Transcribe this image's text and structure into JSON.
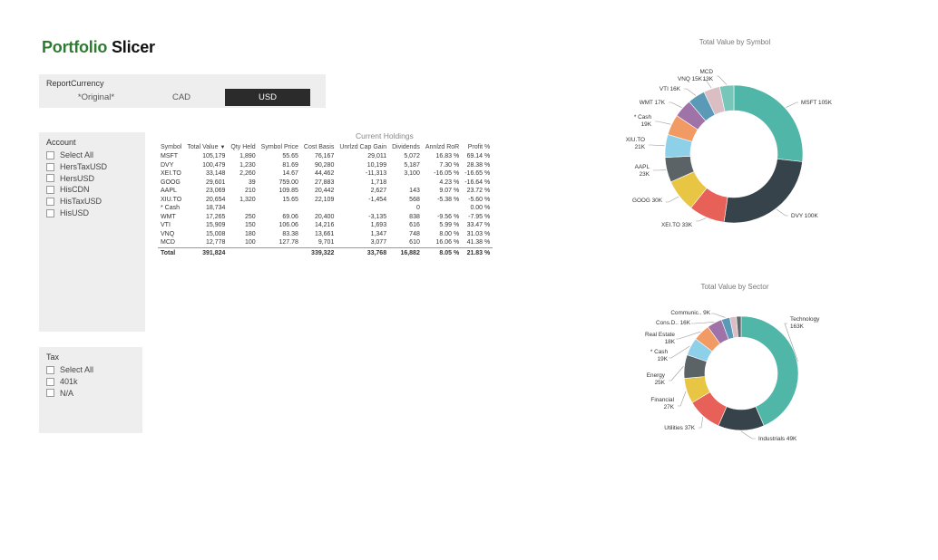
{
  "header": {
    "title_part1": "Portfolio",
    "title_part2": "Slicer"
  },
  "report_currency": {
    "label": "ReportCurrency",
    "options": [
      "*Original*",
      "CAD",
      "USD"
    ],
    "selected": "USD"
  },
  "account_slicer": {
    "title": "Account",
    "items": [
      "Select All",
      "HersTaxUSD",
      "HersUSD",
      "HisCDN",
      "HisTaxUSD",
      "HisUSD"
    ]
  },
  "tax_slicer": {
    "title": "Tax",
    "items": [
      "Select All",
      "401k",
      "N/A"
    ]
  },
  "holdings": {
    "title": "Current Holdings",
    "columns": [
      "Symbol",
      "Total Value",
      "Qty Held",
      "Symbol Price",
      "Cost Basis",
      "Unrlzd Cap Gain",
      "Dividends",
      "Annlzd RoR",
      "Profit %"
    ],
    "sort_icon": "sort-desc-icon",
    "rows": [
      [
        "MSFT",
        "105,179",
        "1,890",
        "55.65",
        "76,167",
        "29,011",
        "5,072",
        "16.83 %",
        "69.14 %"
      ],
      [
        "DVY",
        "100,479",
        "1,230",
        "81.69",
        "90,280",
        "10,199",
        "5,187",
        "7.30 %",
        "28.38 %"
      ],
      [
        "XEI.TO",
        "33,148",
        "2,260",
        "14.67",
        "44,462",
        "-11,313",
        "3,100",
        "-16.05 %",
        "-16.65 %"
      ],
      [
        "GOOG",
        "29,601",
        "39",
        "759.00",
        "27,883",
        "1,718",
        "",
        "4.23 %",
        "-16.64 %"
      ],
      [
        "AAPL",
        "23,069",
        "210",
        "109.85",
        "20,442",
        "2,627",
        "143",
        "9.07 %",
        "23.72 %"
      ],
      [
        "XIU.TO",
        "20,654",
        "1,320",
        "15.65",
        "22,109",
        "-1,454",
        "568",
        "-5.38 %",
        "-5.60 %"
      ],
      [
        "* Cash",
        "18,734",
        "",
        "",
        "",
        "",
        "0",
        "",
        "0.00 %"
      ],
      [
        "WMT",
        "17,265",
        "250",
        "69.06",
        "20,400",
        "-3,135",
        "838",
        "-9.56 %",
        "-7.95 %"
      ],
      [
        "VTI",
        "15,909",
        "150",
        "106.06",
        "14,216",
        "1,693",
        "616",
        "5.99 %",
        "33.47 %"
      ],
      [
        "VNQ",
        "15,008",
        "180",
        "83.38",
        "13,661",
        "1,347",
        "748",
        "8.00 %",
        "31.03 %"
      ],
      [
        "MCD",
        "12,778",
        "100",
        "127.78",
        "9,701",
        "3,077",
        "610",
        "16.06 %",
        "41.38 %"
      ]
    ],
    "total": [
      "Total",
      "391,824",
      "",
      "",
      "339,322",
      "33,768",
      "16,882",
      "8.05 %",
      "21.83 %"
    ]
  },
  "chart_data": [
    {
      "type": "pie",
      "title": "Total Value by Symbol",
      "categories": [
        "MSFT",
        "DVY",
        "XEI.TO",
        "GOOG",
        "AAPL",
        "XIU.TO",
        "* Cash",
        "WMT",
        "VTI",
        "VNQ",
        "MCD"
      ],
      "values": [
        105,
        100,
        33,
        30,
        23,
        21,
        19,
        17,
        16,
        15,
        13
      ],
      "labels": [
        "MSFT 105K",
        "DVY 100K",
        "XEI.TO 33K",
        "GOOG 30K",
        "AAPL\n23K",
        "XIU.TO\n21K",
        "* Cash\n19K",
        "WMT 17K",
        "VTI 16K",
        "VNQ 15K",
        "MCD\n13K"
      ],
      "colors": [
        "#4fb6a8",
        "#37434a",
        "#e86158",
        "#e8c542",
        "#5b6367",
        "#8ed0e8",
        "#f29a63",
        "#a073a8",
        "#5b9ab7",
        "#dbbec4",
        "#76c7ba"
      ]
    },
    {
      "type": "pie",
      "title": "Total Value by Sector",
      "categories": [
        "Technology",
        "Industrials",
        "Utilities",
        "Financial",
        "Energy",
        "* Cash",
        "Real Estate",
        "Cons.D..",
        "Communic.",
        "",
        ""
      ],
      "values": [
        163,
        49,
        37,
        27,
        25,
        19,
        18,
        16,
        9,
        7,
        5
      ],
      "labels": [
        "Technology\n163K",
        "Industrials 49K",
        "Utilities 37K",
        "Financial\n27K",
        "Energy\n25K",
        "* Cash\n19K",
        "Real Estate\n18K",
        "Cons.D.. 16K",
        "Communic.. 9K",
        "",
        ""
      ],
      "colors": [
        "#4fb6a8",
        "#37434a",
        "#e86158",
        "#e8c542",
        "#5b6367",
        "#8ed0e8",
        "#f29a63",
        "#a073a8",
        "#5b9ab7",
        "#dbbec4",
        "#5f6a6e"
      ]
    }
  ]
}
